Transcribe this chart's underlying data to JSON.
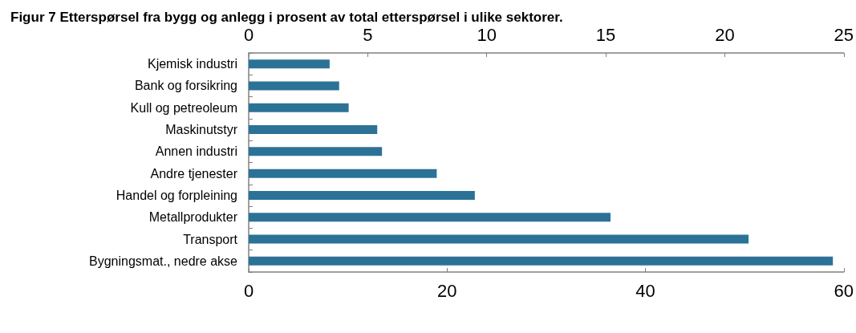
{
  "chart_data": {
    "type": "bar",
    "orientation": "horizontal",
    "title": "Figur 7 Etterspørsel fra bygg og anlegg i prosent av total etterspørsel i ulike sektorer.",
    "categories": [
      "Kjemisk industri",
      "Bank og forsikring",
      "Kull og petreoleum",
      "Maskinutstyr",
      "Annen industri",
      "Andre tjenester",
      "Handel og forpleining",
      "Metallprodukter",
      "Transport",
      "Bygningsmat., nedre akse"
    ],
    "series": [
      {
        "color": "#2c7297",
        "axis": "x2",
        "values": [
          3.4,
          3.8,
          4.2,
          5.4,
          5.6,
          7.9,
          9.5,
          15.2,
          21.0,
          null
        ]
      },
      {
        "color": "#2c7297",
        "values": [
          null,
          null,
          null,
          null,
          null,
          null,
          null,
          null,
          null,
          58.9
        ]
      }
    ],
    "xlim": [
      0,
      60
    ],
    "xticks": [
      0,
      20,
      40,
      60
    ],
    "x2lim": [
      0,
      25
    ],
    "x2ticks": [
      0,
      5,
      10,
      15,
      20,
      25
    ],
    "grid": false
  }
}
